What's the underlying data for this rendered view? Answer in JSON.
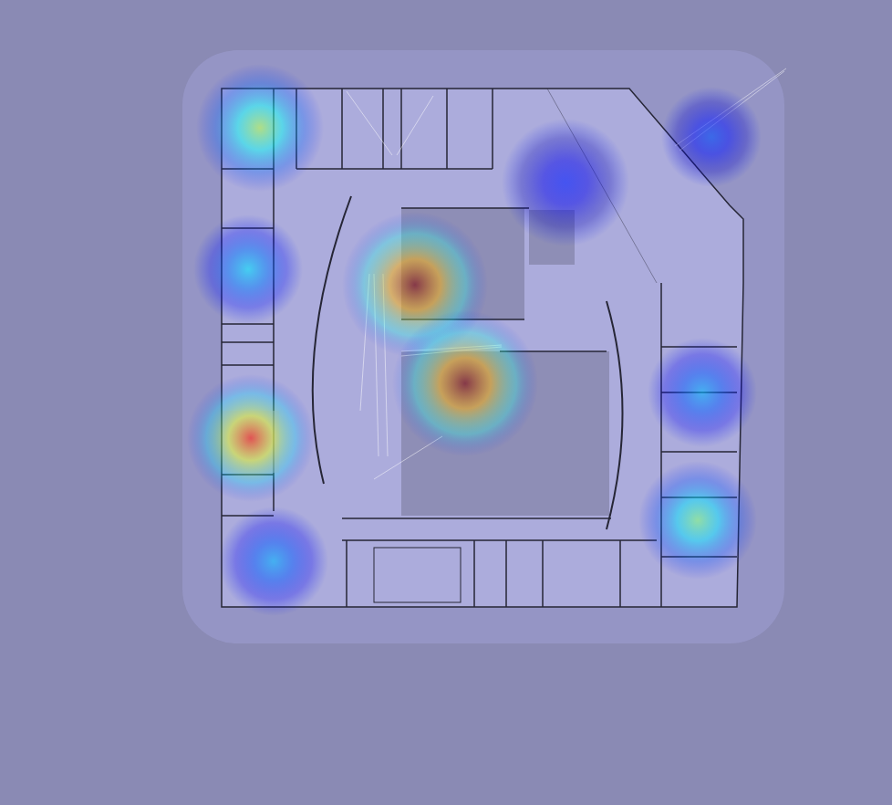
{
  "chart_data": {
    "type": "heatmap",
    "xlim": [
      0,
      978
    ],
    "ylim": [
      0,
      882
    ],
    "tick_labels": false,
    "points": [
      {
        "x": 455,
        "y": 312,
        "value": 1.0,
        "size": 80
      },
      {
        "x": 510,
        "y": 420,
        "value": 1.0,
        "size": 80
      },
      {
        "x": 275,
        "y": 480,
        "value": 0.85,
        "size": 70
      },
      {
        "x": 285,
        "y": 140,
        "value": 0.55,
        "size": 70
      },
      {
        "x": 272,
        "y": 295,
        "value": 0.35,
        "size": 60
      },
      {
        "x": 765,
        "y": 570,
        "value": 0.5,
        "size": 65
      },
      {
        "x": 770,
        "y": 430,
        "value": 0.3,
        "size": 60
      },
      {
        "x": 300,
        "y": 615,
        "value": 0.3,
        "size": 60
      },
      {
        "x": 780,
        "y": 150,
        "value": 0.2,
        "size": 55
      },
      {
        "x": 620,
        "y": 200,
        "value": 0.15,
        "size": 70
      }
    ]
  }
}
